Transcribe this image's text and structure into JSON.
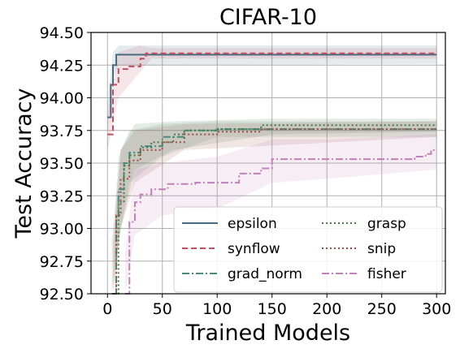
{
  "chart_data": {
    "type": "line",
    "title": "CIFAR-10",
    "xlabel": "Trained Models",
    "ylabel": "Test Accuracy",
    "xlim": [
      -15,
      308
    ],
    "ylim": [
      92.5,
      94.5
    ],
    "xticks": [
      0,
      50,
      100,
      150,
      200,
      250,
      300
    ],
    "yticks": [
      92.5,
      92.75,
      93.0,
      93.25,
      93.5,
      93.75,
      94.0,
      94.25,
      94.5
    ],
    "xtick_labels": [
      "0",
      "50",
      "100",
      "150",
      "200",
      "250",
      "300"
    ],
    "ytick_labels": [
      "92.50",
      "92.75",
      "93.00",
      "93.25",
      "93.50",
      "93.75",
      "94.00",
      "94.25",
      "94.50"
    ],
    "grid": true,
    "legend_position": "lower-right",
    "series": [
      {
        "name": "epsilon",
        "color": "#4a6a80",
        "dash": "solid",
        "x": [
          0,
          3,
          5,
          8,
          300
        ],
        "y": [
          93.85,
          94.1,
          94.25,
          94.33,
          94.33
        ],
        "band": [
          [
            0,
            93.75,
            93.95
          ],
          [
            5,
            94.15,
            94.35
          ],
          [
            10,
            94.25,
            94.4
          ],
          [
            300,
            94.26,
            94.4
          ]
        ]
      },
      {
        "name": "synflow",
        "color": "#c05060",
        "dash": "dashed",
        "x": [
          0,
          5,
          10,
          20,
          30,
          35,
          300
        ],
        "y": [
          93.72,
          94.1,
          94.22,
          94.24,
          94.3,
          94.34,
          94.34
        ],
        "band": [
          [
            0,
            93.6,
            93.85
          ],
          [
            10,
            94.0,
            94.35
          ],
          [
            30,
            94.2,
            94.4
          ],
          [
            40,
            94.3,
            94.38
          ],
          [
            300,
            94.3,
            94.38
          ]
        ]
      },
      {
        "name": "grad_norm",
        "color": "#4a8a7a",
        "dash": "dashdot",
        "x": [
          5,
          8,
          10,
          15,
          20,
          30,
          50,
          70,
          100,
          300
        ],
        "y": [
          92.5,
          93.1,
          93.3,
          93.5,
          93.58,
          93.63,
          93.7,
          93.75,
          93.76,
          93.76
        ],
        "band": [
          [
            5,
            92.4,
            92.9
          ],
          [
            10,
            92.9,
            93.55
          ],
          [
            20,
            93.35,
            93.75
          ],
          [
            50,
            93.55,
            93.8
          ],
          [
            100,
            93.7,
            93.82
          ],
          [
            300,
            93.7,
            93.82
          ]
        ]
      },
      {
        "name": "grasp",
        "color": "#4a7a48",
        "dash": "dotted",
        "x": [
          6,
          10,
          15,
          20,
          30,
          40,
          60,
          70,
          100,
          140,
          300
        ],
        "y": [
          92.5,
          93.2,
          93.48,
          93.56,
          93.62,
          93.66,
          93.72,
          93.75,
          93.76,
          93.79,
          93.79
        ],
        "band": [
          [
            6,
            92.4,
            92.9
          ],
          [
            12,
            93.0,
            93.6
          ],
          [
            25,
            93.45,
            93.8
          ],
          [
            60,
            93.6,
            93.82
          ],
          [
            150,
            93.72,
            93.84
          ],
          [
            300,
            93.74,
            93.84
          ]
        ]
      },
      {
        "name": "snip",
        "color": "#a05048",
        "dash": "dotted",
        "x": [
          4,
          8,
          12,
          20,
          30,
          50,
          70,
          100,
          140,
          300
        ],
        "y": [
          92.5,
          93.1,
          93.38,
          93.52,
          93.6,
          93.66,
          93.72,
          93.74,
          93.76,
          93.76
        ],
        "band": [
          [
            4,
            92.4,
            92.9
          ],
          [
            12,
            93.0,
            93.6
          ],
          [
            25,
            93.35,
            93.75
          ],
          [
            70,
            93.6,
            93.8
          ],
          [
            300,
            93.7,
            93.82
          ]
        ]
      },
      {
        "name": "fisher",
        "color": "#c080b8",
        "dash": "dashdot",
        "x": [
          16,
          20,
          25,
          30,
          40,
          55,
          60,
          80,
          100,
          120,
          140,
          150,
          170,
          280,
          290,
          295,
          300
        ],
        "y": [
          92.5,
          93.05,
          93.2,
          93.26,
          93.3,
          93.34,
          93.34,
          93.35,
          93.35,
          93.42,
          93.46,
          93.53,
          93.53,
          93.55,
          93.57,
          93.6,
          93.6
        ],
        "band": [
          [
            16,
            92.4,
            92.8
          ],
          [
            25,
            92.95,
            93.45
          ],
          [
            50,
            93.1,
            93.5
          ],
          [
            100,
            93.15,
            93.55
          ],
          [
            150,
            93.35,
            93.68
          ],
          [
            200,
            93.38,
            93.68
          ],
          [
            300,
            93.45,
            93.72
          ]
        ]
      }
    ]
  }
}
